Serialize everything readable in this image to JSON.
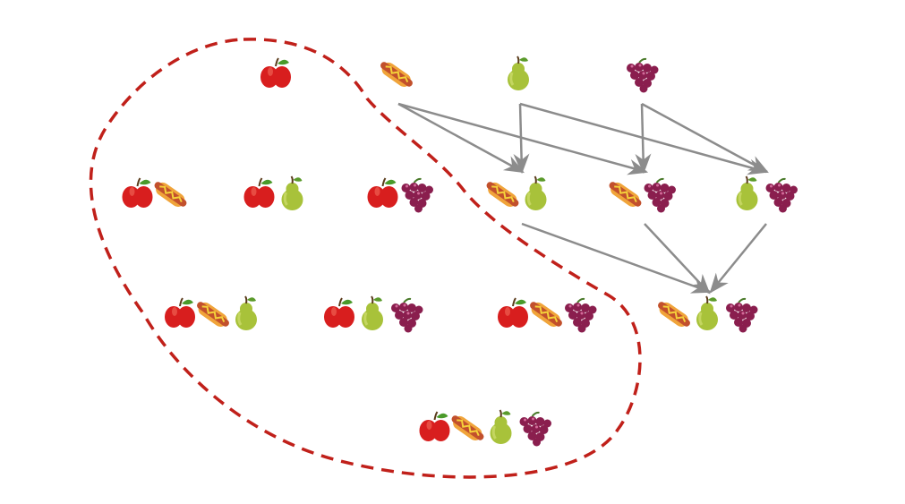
{
  "icons": {
    "a": "apple-icon",
    "h": "hotdog-icon",
    "p": "pear-icon",
    "g": "grapes-icon"
  },
  "colors": {
    "apple": "#d81e1e",
    "hotdog_bun": "#f0a43a",
    "sausage": "#c2502c",
    "mustard": "#f5d33a",
    "pear": "#a8c23a",
    "grape": "#8a1e4e",
    "arrow": "#8c8c8c",
    "dashed_boundary": "#c0201a"
  },
  "subsets": [
    {
      "id": "a"
    },
    {
      "id": "h"
    },
    {
      "id": "p"
    },
    {
      "id": "g"
    },
    {
      "id": "ah"
    },
    {
      "id": "ap"
    },
    {
      "id": "ag"
    },
    {
      "id": "hp"
    },
    {
      "id": "hg"
    },
    {
      "id": "pg"
    },
    {
      "id": "ahp"
    },
    {
      "id": "apg"
    },
    {
      "id": "ahg"
    },
    {
      "id": "hpg"
    },
    {
      "id": "ahpg"
    }
  ],
  "arrows": [
    [
      "h",
      "hp"
    ],
    [
      "h",
      "hg"
    ],
    [
      "p",
      "hp"
    ],
    [
      "p",
      "pg"
    ],
    [
      "g",
      "hg"
    ],
    [
      "g",
      "pg"
    ],
    [
      "hp",
      "hpg"
    ],
    [
      "hg",
      "hpg"
    ],
    [
      "pg",
      "hpg"
    ]
  ],
  "boundary": {
    "style": "dashed",
    "encloses": [
      "a",
      "ah",
      "ap",
      "ag",
      "ahp",
      "apg",
      "ahg",
      "ahpg"
    ]
  }
}
